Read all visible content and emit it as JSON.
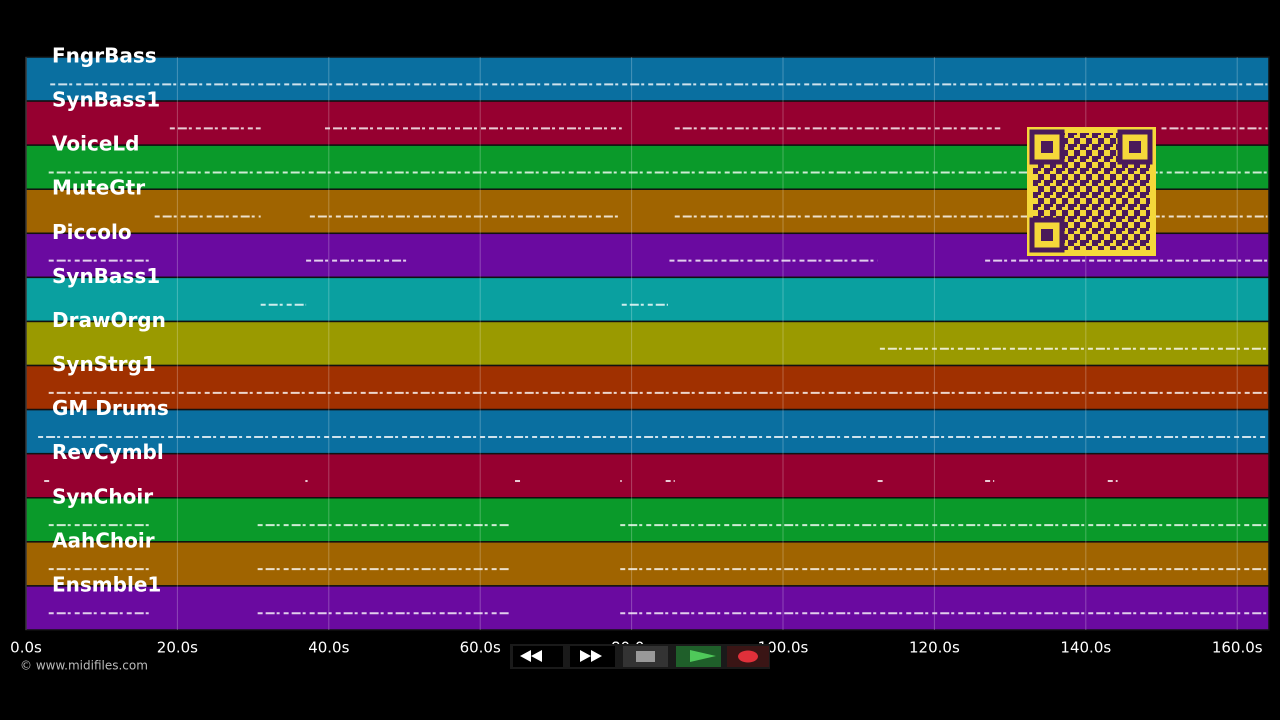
{
  "tracks": [
    {
      "name": "FngrBass",
      "color": "#0a6fa0",
      "notes": [
        [
          3.2,
          164
        ]
      ]
    },
    {
      "name": "SynBass1",
      "color": "#960030",
      "notes": [
        [
          19,
          31
        ],
        [
          39.5,
          78.7
        ],
        [
          85.7,
          128.7
        ],
        [
          150,
          164
        ]
      ]
    },
    {
      "name": "VoiceLd",
      "color": "#0a9a2a",
      "notes": [
        [
          3,
          164
        ]
      ]
    },
    {
      "name": "MuteGtr",
      "color": "#a06400",
      "notes": [
        [
          17,
          31
        ],
        [
          37.5,
          78.7
        ],
        [
          85.7,
          164
        ]
      ]
    },
    {
      "name": "Piccolo",
      "color": "#6a0aa0",
      "notes": [
        [
          3,
          16.4
        ],
        [
          37,
          50.7
        ],
        [
          85,
          112.5
        ],
        [
          126.7,
          164
        ]
      ]
    },
    {
      "name": "SynBass1",
      "color": "#0aa0a0",
      "notes": [
        [
          31,
          37
        ],
        [
          78.7,
          84.8
        ]
      ]
    },
    {
      "name": "DrawOrgn",
      "color": "#9a9a00",
      "notes": [
        [
          112.8,
          164
        ]
      ]
    },
    {
      "name": "SynStrg1",
      "color": "#a03000",
      "notes": [
        [
          3,
          164
        ]
      ]
    },
    {
      "name": "GM Drums",
      "color": "#0a6fa0",
      "notes": [
        [
          1.6,
          164
        ]
      ]
    },
    {
      "name": "RevCymbl",
      "color": "#960030",
      "notes": [
        [
          2.4,
          3.4
        ],
        [
          36.9,
          37.2
        ],
        [
          64.6,
          65.5
        ],
        [
          78.5,
          78.7
        ],
        [
          84.5,
          85.7
        ],
        [
          112.5,
          113.5
        ],
        [
          126.7,
          127.9
        ],
        [
          142.9,
          144.2
        ]
      ]
    },
    {
      "name": "SynChoir",
      "color": "#0a9a2a",
      "notes": [
        [
          3,
          16.4
        ],
        [
          30.6,
          64
        ],
        [
          78.5,
          164
        ]
      ]
    },
    {
      "name": "AahChoir",
      "color": "#a06400",
      "notes": [
        [
          3,
          16.4
        ],
        [
          30.6,
          64
        ],
        [
          78.5,
          164
        ]
      ]
    },
    {
      "name": "Ensmble1",
      "color": "#6a0aa0",
      "notes": [
        [
          3,
          16.4
        ],
        [
          30.6,
          64
        ],
        [
          78.5,
          164
        ]
      ]
    }
  ],
  "time_axis": {
    "xlim": [
      0,
      164.2
    ],
    "ticks": [
      {
        "value": 0,
        "label": "0.0s"
      },
      {
        "value": 20,
        "label": "20.0s"
      },
      {
        "value": 40,
        "label": "40.0s"
      },
      {
        "value": 60,
        "label": "60.0s"
      },
      {
        "value": 80,
        "label": "80.0s"
      },
      {
        "value": 100,
        "label": "100.0s"
      },
      {
        "value": 120,
        "label": "120.0s"
      },
      {
        "value": 140,
        "label": "140.0s"
      },
      {
        "value": 160,
        "label": "160.0s"
      }
    ]
  },
  "footer": {
    "copyright": "© www.midifiles.com"
  }
}
